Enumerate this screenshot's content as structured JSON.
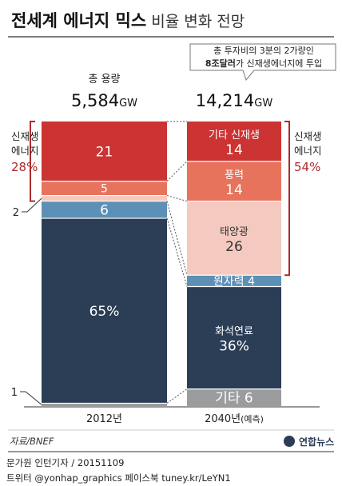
{
  "chart_data": {
    "type": "bar",
    "stacked": true,
    "title": "전세계 에너지 믹스",
    "subtitle": "비율 변화 전망",
    "unit": "%",
    "categories": [
      "2012년",
      "2040년"
    ],
    "category_suffix": [
      "",
      "(예측)"
    ],
    "capacity_label": "총 용량",
    "capacity": [
      "5,584",
      "14,214"
    ],
    "capacity_unit": "GW",
    "callout": {
      "line1": "총 투자비의 3분의 2가량인",
      "line2_bold": "8조달러",
      "line2_rest": "가 신재생에너지에 투입"
    },
    "series": [
      {
        "name": "",
        "values": [
          1,
          6
        ],
        "color": "#9b9c9e",
        "labels": [
          "",
          "기타 6"
        ]
      },
      {
        "name": "",
        "values": [
          65,
          36
        ],
        "color": "#2b3e56",
        "labels": [
          "65%",
          "화석연료\n36%"
        ]
      },
      {
        "name": "",
        "values": [
          6,
          4
        ],
        "color": "#5d90b6",
        "labels": [
          "6",
          "원자력 4"
        ]
      },
      {
        "name": "",
        "values": [
          2,
          26
        ],
        "color": "#f4cac0",
        "labels": [
          "",
          "태양광\n26"
        ]
      },
      {
        "name": "",
        "values": [
          5,
          14
        ],
        "color": "#e8735d",
        "labels": [
          "5",
          "풍력\n14"
        ]
      },
      {
        "name": "",
        "values": [
          21,
          14
        ],
        "color": "#cc3333",
        "labels": [
          "21",
          "기타 신재생\n14"
        ]
      }
    ],
    "side_labels": [
      1,
      2
    ],
    "renewable_left": {
      "line1": "신재생",
      "line2": "에너지",
      "value": "28%"
    },
    "renewable_right": {
      "line1": "신재생",
      "line2": "에너지",
      "value": "54%"
    },
    "ylim": [
      0,
      100
    ]
  },
  "footer": {
    "source": "자료/BNEF",
    "logo": "연합뉴스",
    "credit1": "문가원 인턴기자 / 20151109",
    "credit2": "트위터 @yonhap_graphics  페이스북 tuney.kr/LeYN1"
  },
  "colors": {
    "accent": "#b02a2a",
    "divider": "#555555",
    "background": "#ffffff"
  }
}
